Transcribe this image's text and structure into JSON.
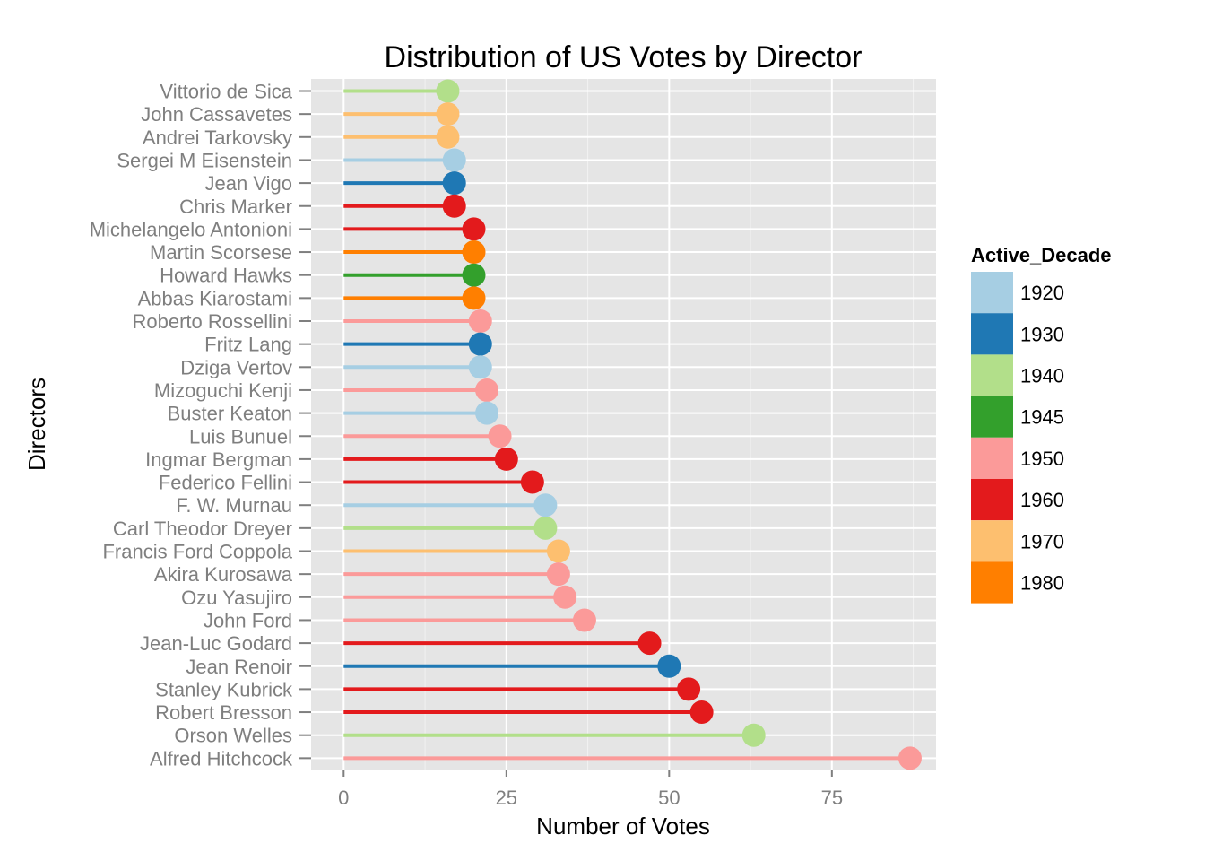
{
  "chart_data": {
    "type": "lollipop",
    "title": "Distribution of US Votes by Director",
    "xlabel": "Number of Votes",
    "ylabel": "Directors",
    "xlim": [
      -5,
      91
    ],
    "xticks": [
      0,
      25,
      50,
      75
    ],
    "grid": true,
    "legend": {
      "title": "Active_Decade",
      "placement": "right"
    },
    "decades": [
      {
        "label": "1920",
        "color": "#a6cee3"
      },
      {
        "label": "1930",
        "color": "#1f78b4"
      },
      {
        "label": "1940",
        "color": "#b2df8a"
      },
      {
        "label": "1945",
        "color": "#33a02c"
      },
      {
        "label": "1950",
        "color": "#fb9a99"
      },
      {
        "label": "1960",
        "color": "#e31a1c"
      },
      {
        "label": "1970",
        "color": "#fdbf6f"
      },
      {
        "label": "1980",
        "color": "#ff7f00"
      }
    ],
    "points": [
      {
        "director": "Vittorio de Sica",
        "votes": 16,
        "decade": "1940"
      },
      {
        "director": "John Cassavetes",
        "votes": 16,
        "decade": "1970"
      },
      {
        "director": "Andrei Tarkovsky",
        "votes": 16,
        "decade": "1970"
      },
      {
        "director": "Sergei M Eisenstein",
        "votes": 17,
        "decade": "1920"
      },
      {
        "director": "Jean Vigo",
        "votes": 17,
        "decade": "1930"
      },
      {
        "director": "Chris Marker",
        "votes": 17,
        "decade": "1960"
      },
      {
        "director": "Michelangelo Antonioni",
        "votes": 20,
        "decade": "1960"
      },
      {
        "director": "Martin Scorsese",
        "votes": 20,
        "decade": "1980"
      },
      {
        "director": "Howard Hawks",
        "votes": 20,
        "decade": "1945"
      },
      {
        "director": "Abbas Kiarostami",
        "votes": 20,
        "decade": "1980"
      },
      {
        "director": "Roberto Rossellini",
        "votes": 21,
        "decade": "1950"
      },
      {
        "director": "Fritz Lang",
        "votes": 21,
        "decade": "1930"
      },
      {
        "director": "Dziga Vertov",
        "votes": 21,
        "decade": "1920"
      },
      {
        "director": "Mizoguchi Kenji",
        "votes": 22,
        "decade": "1950"
      },
      {
        "director": "Buster Keaton",
        "votes": 22,
        "decade": "1920"
      },
      {
        "director": "Luis Bunuel",
        "votes": 24,
        "decade": "1950"
      },
      {
        "director": "Ingmar Bergman",
        "votes": 25,
        "decade": "1960"
      },
      {
        "director": "Federico Fellini",
        "votes": 29,
        "decade": "1960"
      },
      {
        "director": "F. W. Murnau",
        "votes": 31,
        "decade": "1920"
      },
      {
        "director": "Carl Theodor Dreyer",
        "votes": 31,
        "decade": "1940"
      },
      {
        "director": "Francis Ford Coppola",
        "votes": 33,
        "decade": "1970"
      },
      {
        "director": "Akira Kurosawa",
        "votes": 33,
        "decade": "1950"
      },
      {
        "director": "Ozu Yasujiro",
        "votes": 34,
        "decade": "1950"
      },
      {
        "director": "John Ford",
        "votes": 37,
        "decade": "1950"
      },
      {
        "director": "Jean-Luc Godard",
        "votes": 47,
        "decade": "1960"
      },
      {
        "director": "Jean Renoir",
        "votes": 50,
        "decade": "1930"
      },
      {
        "director": "Stanley Kubrick",
        "votes": 53,
        "decade": "1960"
      },
      {
        "director": "Robert Bresson",
        "votes": 55,
        "decade": "1960"
      },
      {
        "director": "Orson Welles",
        "votes": 63,
        "decade": "1940"
      },
      {
        "director": "Alfred Hitchcock",
        "votes": 87,
        "decade": "1950"
      }
    ]
  }
}
